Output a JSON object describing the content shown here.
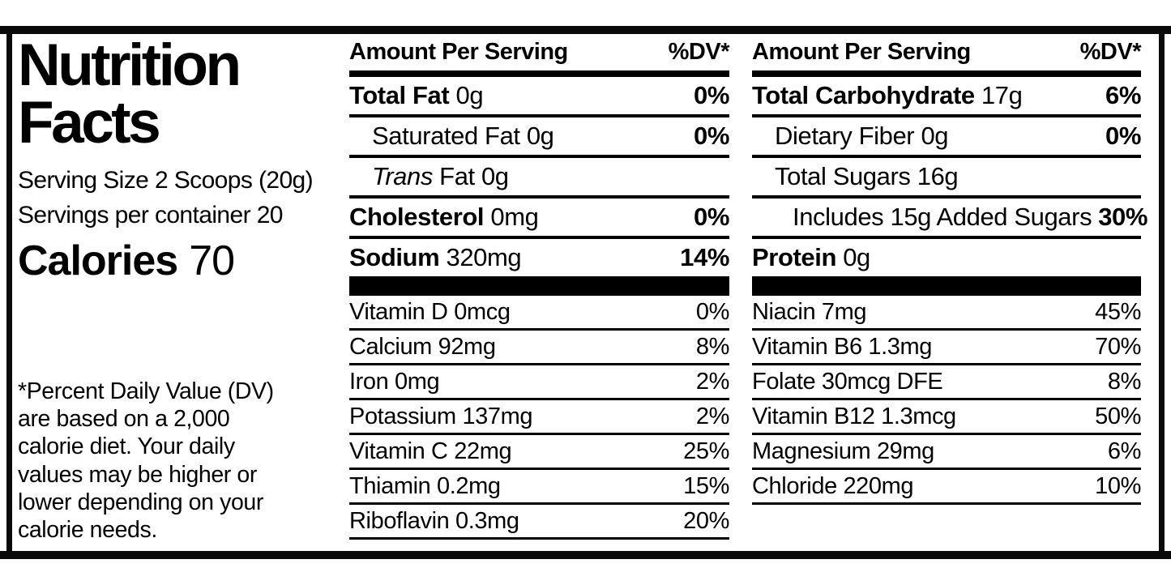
{
  "colors": {
    "ink": "#000000",
    "background": "#ffffff"
  },
  "label": {
    "title_line1": "Nutrition",
    "title_line2": "Facts",
    "serving_size": "Serving Size 2 Scoops (20g)",
    "servings_per_container": "Servings per container 20",
    "calories_label": "Calories",
    "calories_value": "70",
    "footnote_lines": [
      "*Percent Daily Value (DV)",
      "are based on a 2,000",
      "calorie diet. Your daily",
      "values may be higher or",
      "lower depending on your",
      "calorie needs."
    ]
  },
  "columns": [
    {
      "header": {
        "amount": "Amount Per Serving",
        "dv": "%DV*"
      },
      "rows": [
        {
          "parts": [
            {
              "t": "Total Fat",
              "b": true
            },
            {
              "t": " 0g"
            }
          ],
          "dv": "0%",
          "dvb": true,
          "indent": 0,
          "sec": "main"
        },
        {
          "parts": [
            {
              "t": "Saturated Fat 0g"
            }
          ],
          "dv": "0%",
          "dvb": true,
          "indent": 1,
          "sec": "main"
        },
        {
          "parts": [
            {
              "t": "Trans",
              "i": true
            },
            {
              "t": " Fat 0g"
            }
          ],
          "dv": null,
          "indent": 1,
          "sec": "main"
        },
        {
          "parts": [
            {
              "t": "Cholesterol",
              "b": true
            },
            {
              "t": " 0mg"
            }
          ],
          "dv": "0%",
          "dvb": true,
          "indent": 0,
          "sec": "main"
        },
        {
          "parts": [
            {
              "t": "Sodium",
              "b": true
            },
            {
              "t": " 320mg"
            }
          ],
          "dv": "14%",
          "dvb": true,
          "indent": 0,
          "sec": "main",
          "noborder": true
        },
        {
          "type": "thickbar"
        },
        {
          "parts": [
            {
              "t": "Vitamin D 0mcg"
            }
          ],
          "dv": "0%",
          "dvb": false,
          "indent": 0,
          "sec": "vit"
        },
        {
          "parts": [
            {
              "t": "Calcium 92mg"
            }
          ],
          "dv": "8%",
          "dvb": false,
          "indent": 0,
          "sec": "vit"
        },
        {
          "parts": [
            {
              "t": "Iron 0mg"
            }
          ],
          "dv": "2%",
          "dvb": false,
          "indent": 0,
          "sec": "vit"
        },
        {
          "parts": [
            {
              "t": "Potassium 137mg"
            }
          ],
          "dv": "2%",
          "dvb": false,
          "indent": 0,
          "sec": "vit"
        },
        {
          "parts": [
            {
              "t": "Vitamin C 22mg"
            }
          ],
          "dv": "25%",
          "dvb": false,
          "indent": 0,
          "sec": "vit"
        },
        {
          "parts": [
            {
              "t": "Thiamin 0.2mg"
            }
          ],
          "dv": "15%",
          "dvb": false,
          "indent": 0,
          "sec": "vit"
        },
        {
          "parts": [
            {
              "t": "Riboflavin 0.3mg"
            }
          ],
          "dv": "20%",
          "dvb": false,
          "indent": 0,
          "sec": "vit"
        }
      ]
    },
    {
      "header": {
        "amount": "Amount Per Serving",
        "dv": "%DV*"
      },
      "rows": [
        {
          "parts": [
            {
              "t": "Total Carbohydrate",
              "b": true
            },
            {
              "t": " 17g"
            }
          ],
          "dv": "6%",
          "dvb": true,
          "indent": 0,
          "sec": "main"
        },
        {
          "parts": [
            {
              "t": "Dietary Fiber 0g"
            }
          ],
          "dv": "0%",
          "dvb": true,
          "indent": 1,
          "sec": "main"
        },
        {
          "parts": [
            {
              "t": "Total Sugars 16g"
            }
          ],
          "dv": null,
          "indent": 1,
          "sec": "main"
        },
        {
          "parts": [
            {
              "t": "Includes 15g Added Sugars"
            }
          ],
          "dv": "30%",
          "dvb": true,
          "indent": 2,
          "sec": "main"
        },
        {
          "parts": [
            {
              "t": "Protein",
              "b": true
            },
            {
              "t": " 0g"
            }
          ],
          "dv": null,
          "indent": 0,
          "sec": "main",
          "noborder": true
        },
        {
          "type": "thickbar"
        },
        {
          "parts": [
            {
              "t": "Niacin 7mg"
            }
          ],
          "dv": "45%",
          "dvb": false,
          "indent": 0,
          "sec": "vit"
        },
        {
          "parts": [
            {
              "t": "Vitamin B6 1.3mg"
            }
          ],
          "dv": "70%",
          "dvb": false,
          "indent": 0,
          "sec": "vit"
        },
        {
          "parts": [
            {
              "t": "Folate 30mcg DFE"
            }
          ],
          "dv": "8%",
          "dvb": false,
          "indent": 0,
          "sec": "vit"
        },
        {
          "parts": [
            {
              "t": "Vitamin B12 1.3mcg"
            }
          ],
          "dv": "50%",
          "dvb": false,
          "indent": 0,
          "sec": "vit"
        },
        {
          "parts": [
            {
              "t": "Magnesium 29mg"
            }
          ],
          "dv": "6%",
          "dvb": false,
          "indent": 0,
          "sec": "vit"
        },
        {
          "parts": [
            {
              "t": "Chloride 220mg"
            }
          ],
          "dv": "10%",
          "dvb": false,
          "indent": 0,
          "sec": "vit"
        }
      ]
    }
  ]
}
